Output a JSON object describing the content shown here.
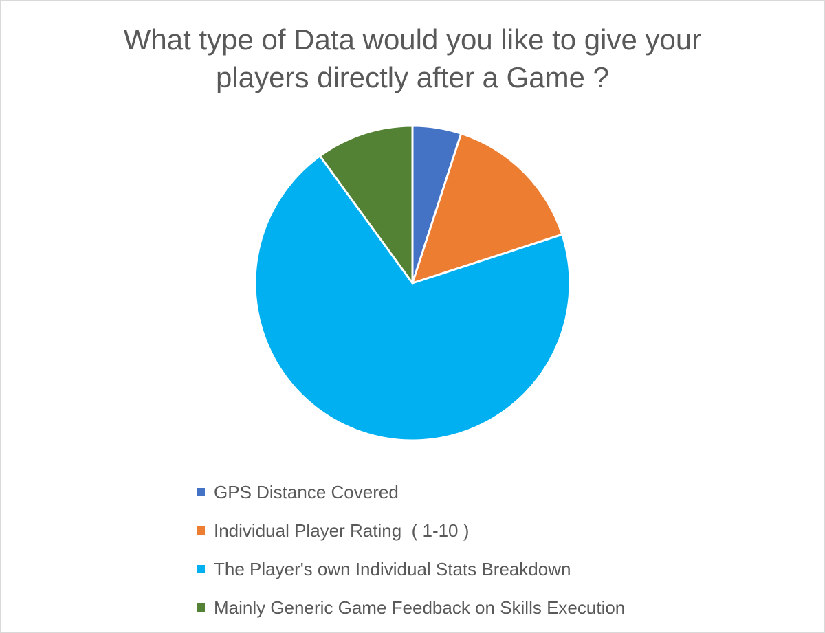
{
  "chart_data": {
    "type": "pie",
    "title_lines": [
      "What type of Data would you like to give your",
      "players directly after a Game ?"
    ],
    "categories": [
      "GPS Distance Covered",
      "Individual Player Rating  ( 1-10 )",
      "The Player's own Individual Stats Breakdown",
      "Mainly Generic Game Feedback on Skills Execution"
    ],
    "values": [
      5,
      15,
      70,
      10
    ],
    "colors": [
      "#4472c4",
      "#ed7d31",
      "#00b0f0",
      "#548235"
    ],
    "legend_position": "bottom"
  }
}
